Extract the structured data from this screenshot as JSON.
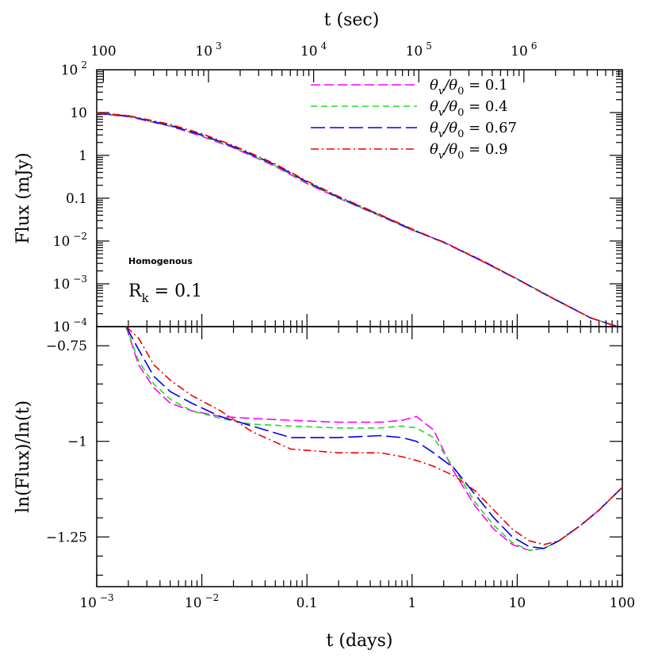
{
  "chart_data": {
    "type": "line",
    "title": "",
    "top_axis": {
      "label": "t (sec)",
      "ticks": [
        {
          "value": 100,
          "label": "100",
          "sup": ""
        },
        {
          "value": 1000,
          "label": "10",
          "sup": "3"
        },
        {
          "value": 10000,
          "label": "10",
          "sup": "4"
        },
        {
          "value": 100000,
          "label": "10",
          "sup": "5"
        },
        {
          "value": 1000000,
          "label": "10",
          "sup": "6"
        }
      ]
    },
    "xlabel": "t (days)",
    "xscale": "log",
    "xlim": [
      0.001,
      100
    ],
    "x_ticks": [
      {
        "value": 0.001,
        "label": "10",
        "sup": "-3"
      },
      {
        "value": 0.01,
        "label": "10",
        "sup": "-2"
      },
      {
        "value": 0.1,
        "label": "0.1",
        "sup": ""
      },
      {
        "value": 1,
        "label": "1",
        "sup": ""
      },
      {
        "value": 10,
        "label": "10",
        "sup": ""
      },
      {
        "value": 100,
        "label": "100",
        "sup": ""
      }
    ],
    "panels": [
      {
        "id": "flux",
        "ylabel": "Flux (mJy)",
        "yscale": "log",
        "ylim": [
          0.0001,
          100
        ],
        "y_ticks": [
          {
            "value": 100,
            "label": "10",
            "sup": "2"
          },
          {
            "value": 10,
            "label": "10",
            "sup": ""
          },
          {
            "value": 1,
            "label": "1",
            "sup": ""
          },
          {
            "value": 0.1,
            "label": "0.1",
            "sup": ""
          },
          {
            "value": 0.01,
            "label": "10",
            "sup": "-2"
          },
          {
            "value": 0.001,
            "label": "10",
            "sup": "-3"
          },
          {
            "value": 0.0001,
            "label": "10",
            "sup": "-4"
          }
        ],
        "annotations": [
          {
            "text": "Homogenous",
            "style": "small"
          },
          {
            "text": "R",
            "sub": "k",
            "rest": " =  0.1",
            "style": "big"
          }
        ],
        "series": [
          {
            "name_main": "θ",
            "name_sub1": "v",
            "name_mid": "/θ",
            "name_sub2": "0",
            "name_val": " =  0.1",
            "color": "#ff00ff",
            "dash": "12,5",
            "x": [
              0.001,
              0.002,
              0.005,
              0.01,
              0.02,
              0.05,
              0.1,
              0.2,
              0.5,
              1,
              2,
              5,
              10,
              20,
              50,
              90
            ],
            "y": [
              9.5,
              8.0,
              4.8,
              2.8,
              1.5,
              0.55,
              0.22,
              0.1,
              0.038,
              0.018,
              0.0095,
              0.0032,
              0.0013,
              0.00052,
              0.00016,
              0.0001
            ]
          },
          {
            "name_main": "θ",
            "name_sub1": "v",
            "name_mid": "/θ",
            "name_sub2": "0",
            "name_val": " =  0.4",
            "color": "#22dd22",
            "dash": "8,5",
            "x": [
              0.001,
              0.002,
              0.005,
              0.01,
              0.02,
              0.05,
              0.1,
              0.2,
              0.5,
              1,
              2,
              5,
              10,
              20,
              50,
              90
            ],
            "y": [
              9.6,
              8.1,
              4.9,
              2.9,
              1.55,
              0.57,
              0.23,
              0.1,
              0.039,
              0.018,
              0.0093,
              0.0031,
              0.0013,
              0.00052,
              0.00016,
              0.0001
            ]
          },
          {
            "name_main": "θ",
            "name_sub1": "v",
            "name_mid": "/θ",
            "name_sub2": "0",
            "name_val": " =  0.67",
            "color": "#0000ee",
            "dash": "18,6",
            "x": [
              0.001,
              0.002,
              0.005,
              0.01,
              0.02,
              0.05,
              0.1,
              0.2,
              0.5,
              1,
              2,
              5,
              10,
              20,
              50,
              90
            ],
            "y": [
              9.7,
              8.3,
              5.0,
              3.0,
              1.6,
              0.6,
              0.24,
              0.105,
              0.04,
              0.0185,
              0.0093,
              0.0031,
              0.00128,
              0.00051,
              0.00016,
              0.0001
            ]
          },
          {
            "name_main": "θ",
            "name_sub1": "v",
            "name_mid": "/θ",
            "name_sub2": "0",
            "name_val": " =  0.9",
            "color": "#ee0000",
            "dash": "10,4,2,4",
            "x": [
              0.001,
              0.002,
              0.005,
              0.01,
              0.02,
              0.05,
              0.1,
              0.2,
              0.5,
              1,
              2,
              5,
              10,
              20,
              50,
              90
            ],
            "y": [
              9.8,
              8.5,
              5.3,
              3.2,
              1.7,
              0.63,
              0.25,
              0.11,
              0.041,
              0.019,
              0.0094,
              0.0031,
              0.00128,
              0.00051,
              0.00016,
              0.0001
            ]
          }
        ]
      },
      {
        "id": "slope",
        "ylabel": "ln(Flux)/ln(t)",
        "yscale": "linear",
        "ylim": [
          -1.38,
          -0.7
        ],
        "y_ticks": [
          {
            "value": -0.75,
            "label": "-0.75",
            "sup": ""
          },
          {
            "value": -1,
            "label": "-1",
            "sup": ""
          },
          {
            "value": -1.25,
            "label": "-1.25",
            "sup": ""
          }
        ],
        "series": [
          {
            "name": "0.1",
            "color": "#ff00ff",
            "dash": "12,5",
            "x": [
              0.0019,
              0.0025,
              0.0035,
              0.005,
              0.008,
              0.015,
              0.03,
              0.07,
              0.2,
              0.5,
              0.8,
              1.1,
              1.6,
              2.5,
              4,
              6,
              9,
              13,
              18,
              25,
              40,
              60,
              100
            ],
            "y": [
              -0.7,
              -0.8,
              -0.86,
              -0.9,
              -0.92,
              -0.935,
              -0.94,
              -0.945,
              -0.95,
              -0.95,
              -0.945,
              -0.935,
              -0.97,
              -1.08,
              -1.17,
              -1.23,
              -1.27,
              -1.285,
              -1.28,
              -1.26,
              -1.22,
              -1.18,
              -1.12
            ]
          },
          {
            "name": "0.4",
            "color": "#22dd22",
            "dash": "8,5",
            "x": [
              0.0019,
              0.0025,
              0.0035,
              0.005,
              0.008,
              0.015,
              0.03,
              0.07,
              0.2,
              0.5,
              0.8,
              1.1,
              1.6,
              2.5,
              4,
              6,
              9,
              13,
              18,
              25,
              40,
              60,
              100
            ],
            "y": [
              -0.7,
              -0.79,
              -0.85,
              -0.89,
              -0.92,
              -0.94,
              -0.955,
              -0.96,
              -0.965,
              -0.965,
              -0.96,
              -0.965,
              -0.99,
              -1.07,
              -1.16,
              -1.22,
              -1.265,
              -1.285,
              -1.28,
              -1.26,
              -1.22,
              -1.18,
              -1.12
            ]
          },
          {
            "name": "0.67",
            "color": "#0000ee",
            "dash": "18,6",
            "x": [
              0.0019,
              0.0025,
              0.0035,
              0.005,
              0.008,
              0.015,
              0.03,
              0.07,
              0.2,
              0.5,
              0.8,
              1.1,
              1.6,
              2.5,
              4,
              6,
              9,
              13,
              18,
              25,
              40,
              60,
              100
            ],
            "y": [
              -0.7,
              -0.76,
              -0.83,
              -0.87,
              -0.9,
              -0.935,
              -0.96,
              -0.99,
              -0.99,
              -0.985,
              -0.99,
              -1.0,
              -1.03,
              -1.07,
              -1.14,
              -1.2,
              -1.25,
              -1.275,
              -1.28,
              -1.26,
              -1.22,
              -1.18,
              -1.12
            ]
          },
          {
            "name": "0.9",
            "color": "#ee0000",
            "dash": "10,4,2,4",
            "x": [
              0.0019,
              0.0025,
              0.0035,
              0.005,
              0.008,
              0.015,
              0.03,
              0.07,
              0.2,
              0.5,
              0.8,
              1.1,
              1.6,
              2.5,
              4,
              6,
              9,
              13,
              18,
              25,
              40,
              60,
              100
            ],
            "y": [
              -0.7,
              -0.73,
              -0.8,
              -0.84,
              -0.88,
              -0.92,
              -0.975,
              -1.02,
              -1.03,
              -1.03,
              -1.04,
              -1.05,
              -1.065,
              -1.09,
              -1.13,
              -1.18,
              -1.23,
              -1.26,
              -1.27,
              -1.26,
              -1.22,
              -1.18,
              -1.12
            ]
          }
        ]
      }
    ]
  }
}
